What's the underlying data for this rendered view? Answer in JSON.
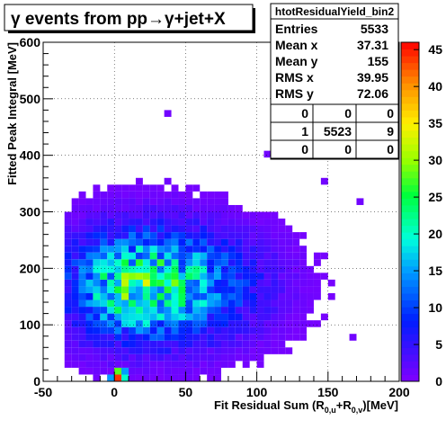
{
  "chart_data": {
    "type": "heatmap",
    "title": "γ events from pp→γ+jet+X",
    "xlabel": "Fit Residual Sum (R0,u+R0,v)[MeV]",
    "ylabel": "Fitted Peak Integral [MeV]",
    "xlim": [
      -50,
      200
    ],
    "ylim": [
      0,
      600
    ],
    "x_ticks": [
      -50,
      0,
      50,
      100,
      150,
      200
    ],
    "y_ticks": [
      0,
      100,
      200,
      300,
      400,
      500,
      600
    ],
    "bin_width_x": 5,
    "bin_width_y": 12,
    "colorbar": {
      "min": 0,
      "max": 46,
      "ticks": [
        0,
        5,
        10,
        15,
        20,
        25,
        30,
        35,
        40,
        45
      ]
    },
    "cluster": {
      "peak_x": 20,
      "peak_y": 170,
      "sigma_x": 35,
      "sigma_y": 65,
      "peak_count": 24
    },
    "grid": true,
    "stats": {
      "name": "htotResidualYield_bin2",
      "rows": [
        {
          "label": "Entries",
          "value": "5533"
        },
        {
          "label": "Mean x",
          "value": "37.31"
        },
        {
          "label": "Mean y",
          "value": "155"
        },
        {
          "label": "RMS x",
          "value": "39.95"
        },
        {
          "label": "RMS y",
          "value": "72.06"
        }
      ],
      "overflow": [
        [
          "0",
          "0",
          "0"
        ],
        [
          "1",
          "5523",
          "9"
        ],
        [
          "0",
          "0",
          "0"
        ]
      ]
    }
  }
}
